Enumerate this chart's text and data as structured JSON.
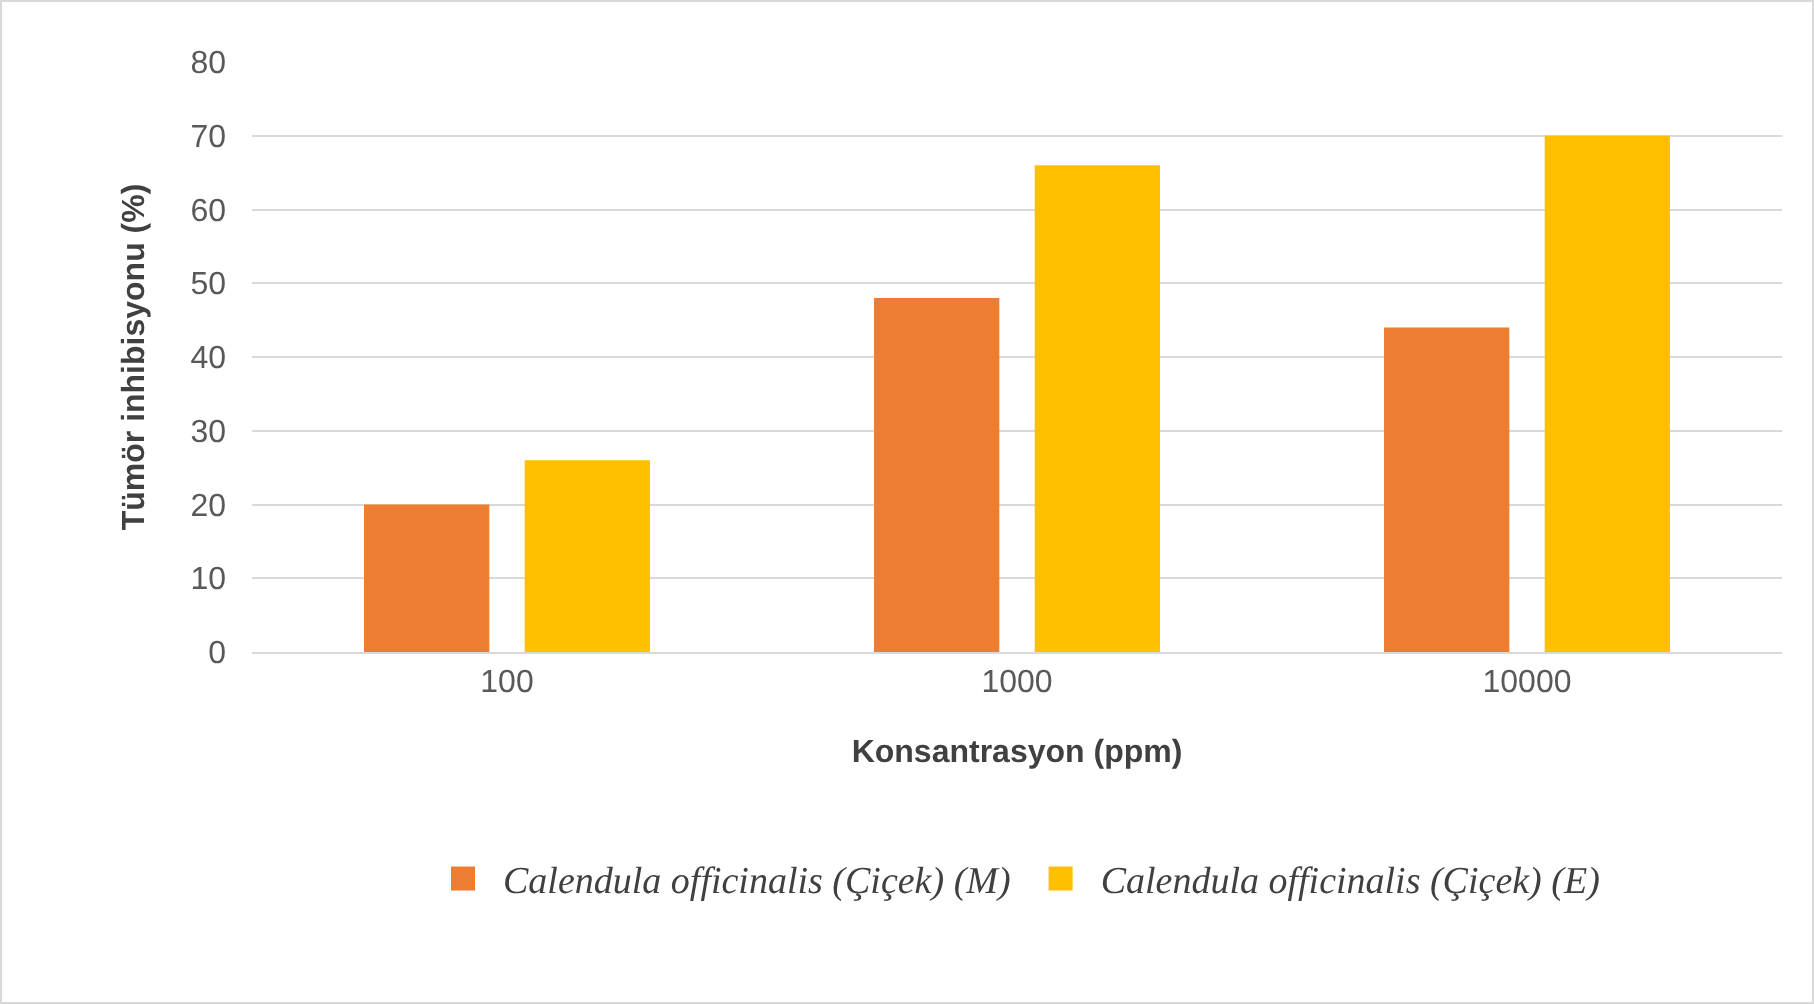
{
  "chart_data": {
    "type": "bar",
    "xlabel": "Konsantrasyon (ppm)",
    "ylabel": "Tümör inhibisyonu (%)",
    "categories": [
      "100",
      "1000",
      "10000"
    ],
    "series": [
      {
        "name": "Calendula officinalis (Çiçek) (M)",
        "color": "#ed7d31",
        "values": [
          20,
          48,
          44
        ]
      },
      {
        "name": "Calendula officinalis (Çiçek) (E)",
        "color": "#ffc000",
        "values": [
          26,
          66,
          70
        ]
      }
    ],
    "ylim": [
      0,
      80
    ],
    "yticks": [
      0,
      10,
      20,
      30,
      40,
      50,
      60,
      70,
      80
    ],
    "grid": "y",
    "legend": "bottom"
  }
}
